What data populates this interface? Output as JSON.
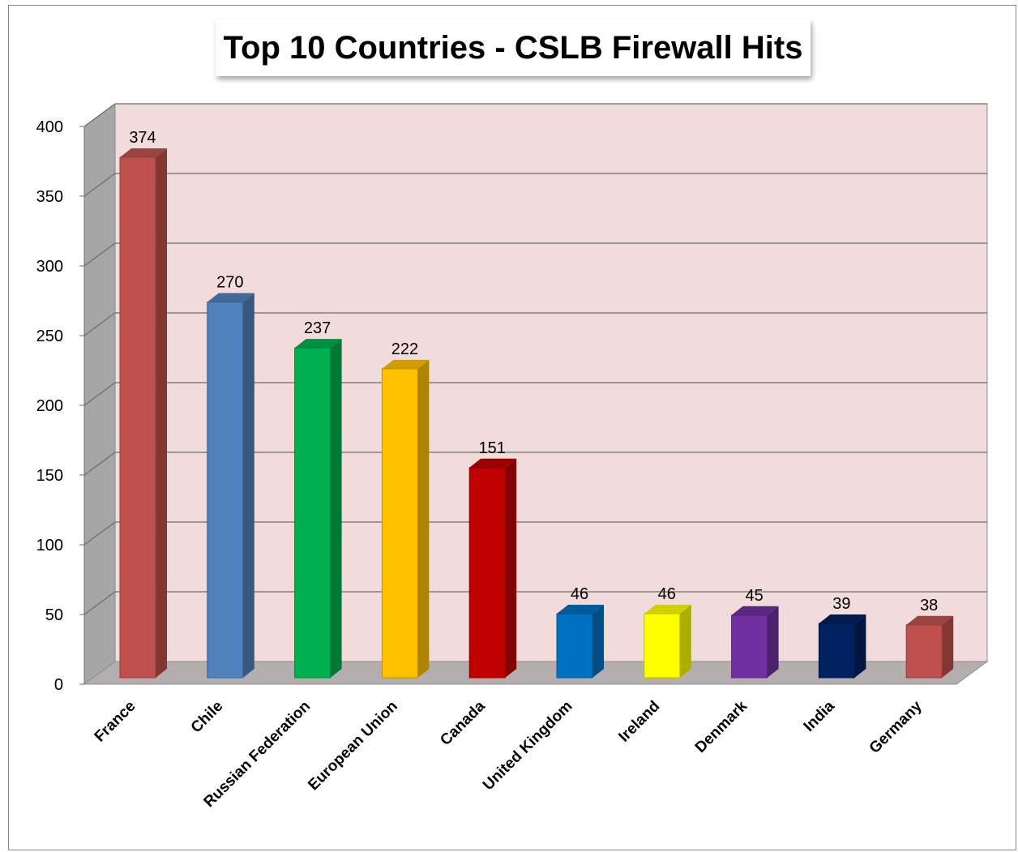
{
  "chart_data": {
    "type": "bar",
    "title": "Top 10 Countries - CSLB Firewall Hits",
    "categories": [
      "France",
      "Chile",
      "Russian Federation",
      "European Union",
      "Canada",
      "United Kingdom",
      "Ireland",
      "Denmark",
      "India",
      "Germany"
    ],
    "values": [
      374,
      270,
      237,
      222,
      151,
      46,
      46,
      45,
      39,
      38
    ],
    "bar_colors": [
      "#c0504d",
      "#4f81bd",
      "#00b050",
      "#ffc000",
      "#c00000",
      "#0070c0",
      "#ffff00",
      "#7030a0",
      "#002060",
      "#c0504d"
    ],
    "ylim": [
      0,
      400
    ],
    "yticks": [
      0,
      50,
      100,
      150,
      200,
      250,
      300,
      350,
      400
    ],
    "xlabel": "",
    "ylabel": "",
    "grid": true,
    "style": "3d-column",
    "plot_background": "#f2dcdb"
  }
}
